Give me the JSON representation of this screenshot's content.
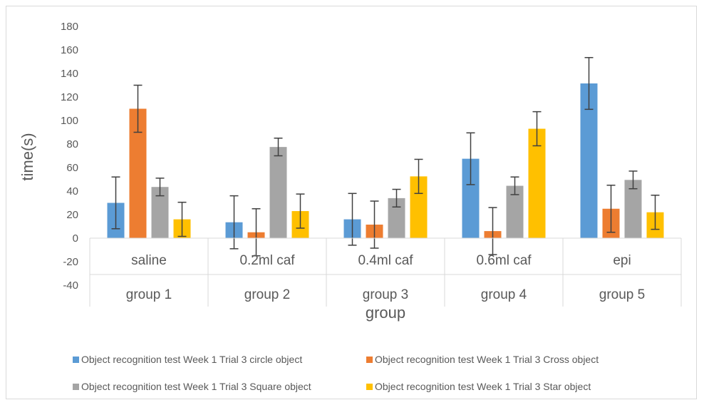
{
  "chart_data": {
    "type": "bar",
    "categories": [
      "saline",
      "0.2ml caf",
      "0.4ml caf",
      "0.6ml caf",
      "epi"
    ],
    "groups": [
      "group 1",
      "group 2",
      "group 3",
      "group 4",
      "group 5"
    ],
    "xlabel": "group",
    "ylabel": "time(s)",
    "ylim": [
      -40,
      180
    ],
    "yticks": [
      -40,
      -20,
      0,
      20,
      40,
      60,
      80,
      100,
      120,
      140,
      160,
      180
    ],
    "grid": false,
    "legend_position": "bottom",
    "series": [
      {
        "name": "Object recognition test Week 1 Trial 3 circle object",
        "color": "#5b9bd5",
        "values": [
          30,
          13.5,
          16,
          67.5,
          131.5
        ],
        "errors": [
          22,
          22.5,
          22,
          22,
          22
        ]
      },
      {
        "name": "Object recognition test Week 1 Trial 3 Cross object",
        "color": "#ed7d31",
        "values": [
          110,
          5,
          11.5,
          6,
          25
        ],
        "errors": [
          20,
          20,
          20,
          20,
          20
        ]
      },
      {
        "name": "Object recognition test Week 1 Trial 3 Square object",
        "color": "#a5a5a5",
        "values": [
          43.5,
          77.5,
          34,
          44.5,
          49.5
        ],
        "errors": [
          7.5,
          7.5,
          7.5,
          7.5,
          7.5
        ]
      },
      {
        "name": "Object recognition test Week 1 Trial 3 Star object",
        "color": "#ffc000",
        "values": [
          16,
          23,
          52.5,
          93,
          22
        ],
        "errors": [
          14.5,
          14.5,
          14.5,
          14.5,
          14.5
        ]
      }
    ]
  }
}
